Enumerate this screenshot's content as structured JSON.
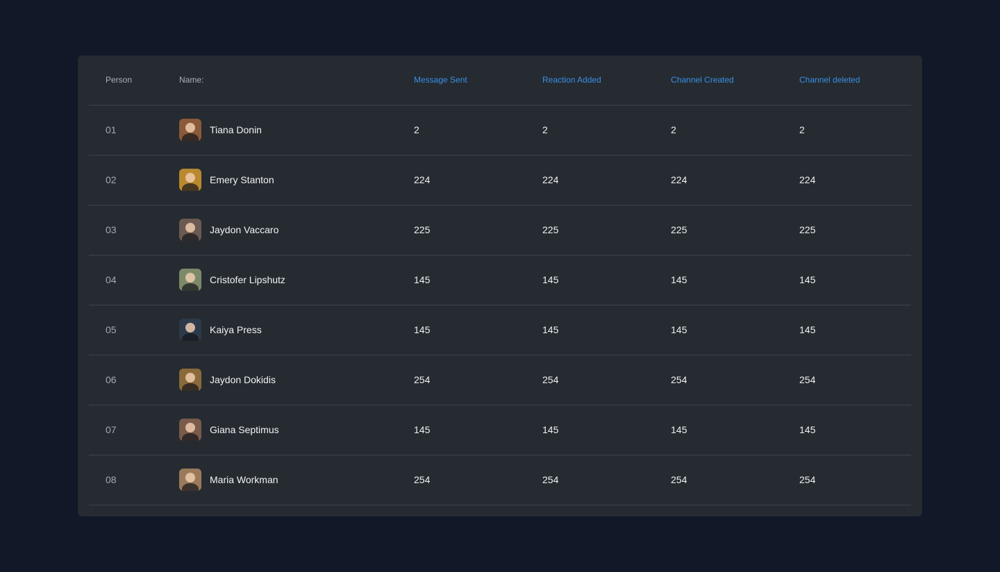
{
  "table": {
    "headers": {
      "person": "Person",
      "name": "Name:",
      "message_sent": "Message Sent",
      "reaction_added": "Reaction Added",
      "channel_created": "Channel Created",
      "channel_deleted": "Channel deleted"
    },
    "colors": {
      "accent_header": "#3b8fe6",
      "card_background": "#252b31",
      "page_background": "#111827"
    },
    "rows": [
      {
        "index": "01",
        "name": "Tiana Donin",
        "avatar_color": "#8a5a3a",
        "message_sent": "2",
        "reaction_added": "2",
        "channel_created": "2",
        "channel_deleted": "2"
      },
      {
        "index": "02",
        "name": "Emery Stanton",
        "avatar_color": "#b8892f",
        "message_sent": "224",
        "reaction_added": "224",
        "channel_created": "224",
        "channel_deleted": "224"
      },
      {
        "index": "03",
        "name": "Jaydon Vaccaro",
        "avatar_color": "#6b5a52",
        "message_sent": "225",
        "reaction_added": "225",
        "channel_created": "225",
        "channel_deleted": "225"
      },
      {
        "index": "04",
        "name": "Cristofer Lipshutz",
        "avatar_color": "#7d8a6a",
        "message_sent": "145",
        "reaction_added": "145",
        "channel_created": "145",
        "channel_deleted": "145"
      },
      {
        "index": "05",
        "name": "Kaiya Press",
        "avatar_color": "#2c3a4a",
        "message_sent": "145",
        "reaction_added": "145",
        "channel_created": "145",
        "channel_deleted": "145"
      },
      {
        "index": "06",
        "name": "Jaydon Dokidis",
        "avatar_color": "#8a6a3a",
        "message_sent": "254",
        "reaction_added": "254",
        "channel_created": "254",
        "channel_deleted": "254"
      },
      {
        "index": "07",
        "name": "Giana Septimus",
        "avatar_color": "#7a5a4a",
        "message_sent": "145",
        "reaction_added": "145",
        "channel_created": "145",
        "channel_deleted": "145"
      },
      {
        "index": "08",
        "name": "Maria Workman",
        "avatar_color": "#9a7a5a",
        "message_sent": "254",
        "reaction_added": "254",
        "channel_created": "254",
        "channel_deleted": "254"
      }
    ]
  }
}
